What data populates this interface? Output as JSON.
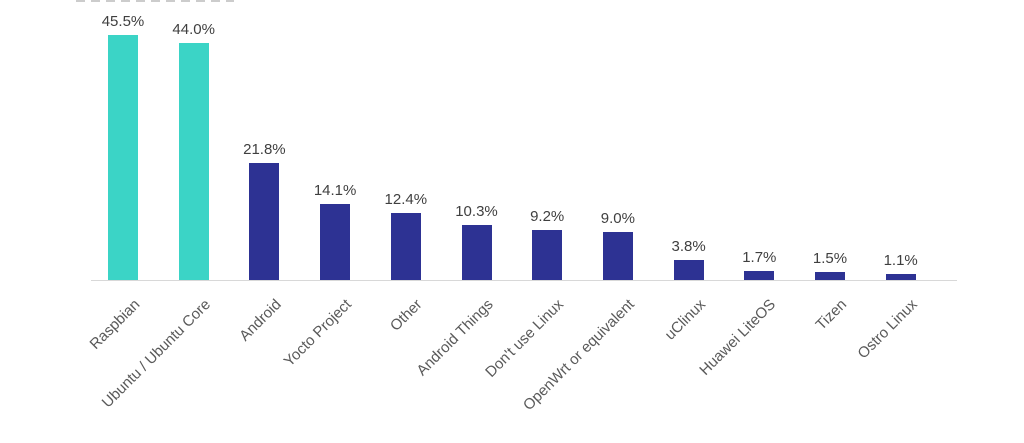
{
  "chart_data": {
    "type": "bar",
    "title": "",
    "xlabel": "",
    "ylabel": "",
    "categories": [
      "Raspbian",
      "Ubuntu / Ubuntu Core",
      "Android",
      "Yocto Project",
      "Other",
      "Android Things",
      "Don't use Linux",
      "OpenWrt or equivalent",
      "uClinux",
      "Huawei LiteOS",
      "Tizen",
      "Ostro Linux"
    ],
    "values": [
      45.5,
      44.0,
      21.8,
      14.1,
      12.4,
      10.3,
      9.2,
      9.0,
      3.8,
      1.7,
      1.5,
      1.1
    ],
    "value_labels": [
      "45.5%",
      "44.0%",
      "21.8%",
      "14.1%",
      "12.4%",
      "10.3%",
      "9.2%",
      "9.0%",
      "3.8%",
      "1.7%",
      "1.5%",
      "1.1%"
    ],
    "ylim": [
      0,
      52
    ],
    "grid": false,
    "legend_position": "none",
    "bar_colors": [
      "#3bd4c6",
      "#3bd4c6",
      "#2d3293",
      "#2d3293",
      "#2d3293",
      "#2d3293",
      "#2d3293",
      "#2d3293",
      "#2d3293",
      "#2d3293",
      "#2d3293",
      "#2d3293"
    ],
    "highlight_color": "#3bd4c6",
    "default_color": "#2d3293",
    "axis_line_color": "#d8d8d8",
    "value_label_color": "#3f3f3f",
    "category_label_color": "#595959"
  }
}
